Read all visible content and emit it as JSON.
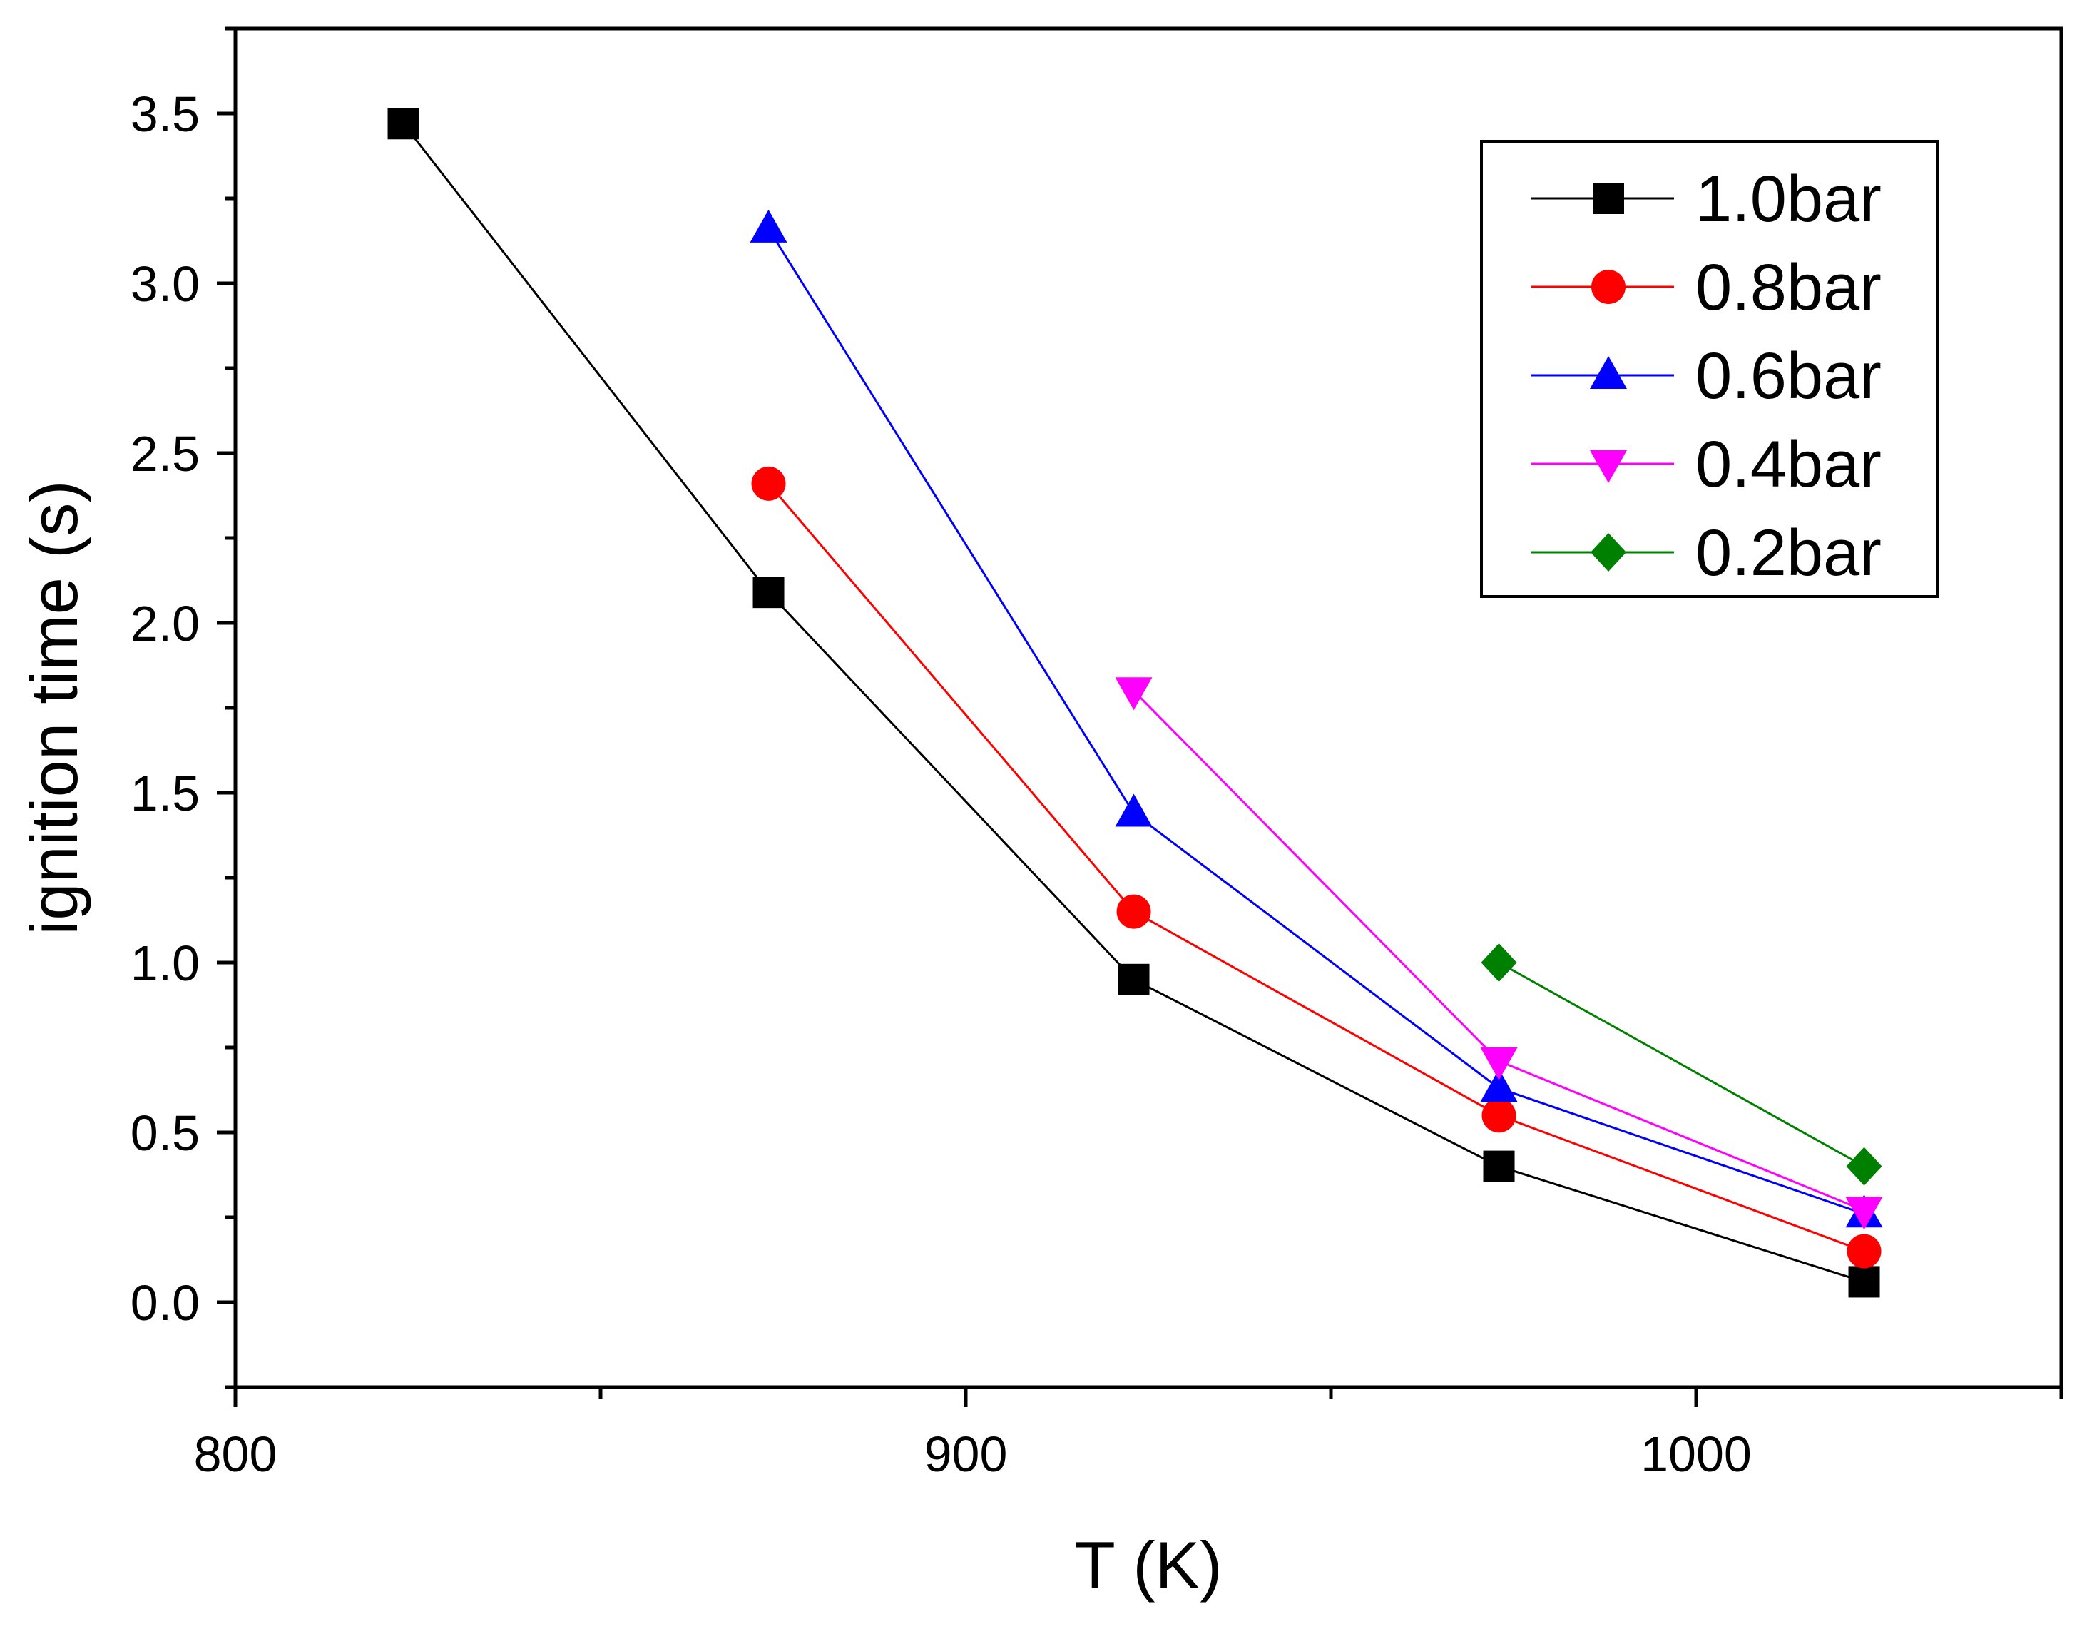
{
  "chart_data": {
    "type": "line",
    "title": "",
    "xlabel": "T (K)",
    "ylabel": "ignition time (s)",
    "xlim": [
      800,
      1050
    ],
    "ylim": [
      -0.25,
      3.75
    ],
    "x_major_ticks": [
      800,
      900,
      1000
    ],
    "x_minor_ticks": [
      850,
      950,
      1050
    ],
    "y_major_ticks": [
      0.0,
      0.5,
      1.0,
      1.5,
      2.0,
      2.5,
      3.0,
      3.5
    ],
    "x_tick_labels": [
      "800",
      "900",
      "1000"
    ],
    "y_tick_labels": [
      "0.0",
      "0.5",
      "1.0",
      "1.5",
      "2.0",
      "2.5",
      "3.0",
      "3.5"
    ],
    "legend_position": "top-right",
    "grid": false,
    "series": [
      {
        "name": "1.0bar",
        "color": "#000000",
        "marker": "square",
        "x": [
          823,
          873,
          923,
          973,
          1023
        ],
        "values": [
          3.47,
          2.09,
          0.95,
          0.4,
          0.06
        ]
      },
      {
        "name": "0.8bar",
        "color": "#ff0000",
        "marker": "circle",
        "x": [
          873,
          923,
          973,
          1023
        ],
        "values": [
          2.41,
          1.15,
          0.55,
          0.15
        ]
      },
      {
        "name": "0.6bar",
        "color": "#0000ff",
        "marker": "triangle-up",
        "x": [
          873,
          923,
          973,
          1023
        ],
        "values": [
          3.16,
          1.44,
          0.63,
          0.26
        ]
      },
      {
        "name": "0.4bar",
        "color": "#ff00ff",
        "marker": "triangle-down",
        "x": [
          923,
          973,
          1023
        ],
        "values": [
          1.8,
          0.71,
          0.27
        ]
      },
      {
        "name": "0.2bar",
        "color": "#008000",
        "marker": "diamond",
        "x": [
          973,
          1023
        ],
        "values": [
          1.0,
          0.4
        ]
      }
    ]
  }
}
